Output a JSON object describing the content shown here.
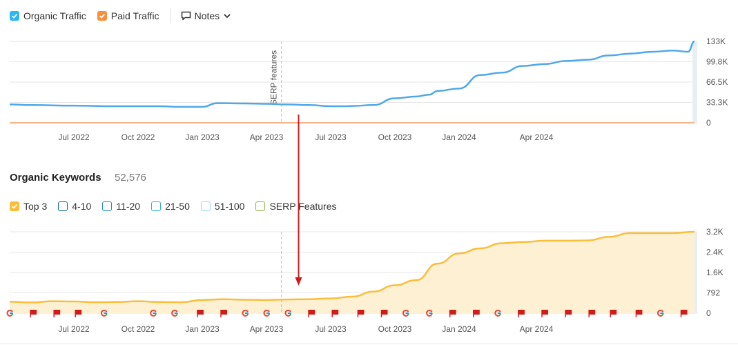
{
  "top_legend": {
    "organic": {
      "label": "Organic Traffic",
      "color": "#2bb7f4",
      "checked": true
    },
    "paid": {
      "label": "Paid Traffic",
      "color": "#f98e3b",
      "checked": true
    },
    "notes_label": "Notes"
  },
  "keywords": {
    "title": "Organic Keywords",
    "count": "52,576",
    "legend": [
      {
        "label": "Top 3",
        "color": "#fbbd35",
        "checked": true
      },
      {
        "label": "4-10",
        "color": "#0e6b8c",
        "checked": false
      },
      {
        "label": "11-20",
        "color": "#1e8fc4",
        "checked": false
      },
      {
        "label": "21-50",
        "color": "#2cb3c9",
        "checked": false
      },
      {
        "label": "51-100",
        "color": "#9fd9e6",
        "checked": false
      },
      {
        "label": "SERP Features",
        "color": "#8cb23a",
        "checked": false
      }
    ]
  },
  "colors": {
    "organic_line": "#4ea8ea",
    "paid_line": "#f7b28a",
    "top3_line": "#f9be3b",
    "top3_fill": "#fdf0d3",
    "arrow": "#cc1b1b",
    "grid": "#e6e6e6"
  },
  "chart_data": [
    {
      "type": "line",
      "x_tick_labels": [
        "Jul 2022",
        "Oct 2022",
        "Jan 2023",
        "Apr 2023",
        "Jul 2023",
        "Oct 2023",
        "Jan 2024",
        "Apr 2024"
      ],
      "y_tick_labels": [
        "133K",
        "99.8K",
        "66.5K",
        "33.3K",
        "0"
      ],
      "ylim": [
        0,
        133000
      ],
      "annotations": [
        {
          "label": "SERP features",
          "x_month": 12.7
        }
      ],
      "series": [
        {
          "name": "Organic Traffic",
          "x_month": [
            0,
            1,
            3,
            5,
            7,
            8,
            9,
            9.7,
            10,
            11,
            12,
            13,
            14,
            15,
            15.6,
            16,
            17,
            18,
            19,
            19.6,
            20,
            21,
            22,
            23,
            24,
            25,
            26,
            27,
            28,
            29,
            30,
            31,
            31.7,
            32
          ],
          "values": [
            30000,
            29000,
            28000,
            27000,
            27000,
            26000,
            26000,
            32000,
            32000,
            31500,
            31000,
            30000,
            29000,
            27000,
            27000,
            27500,
            29000,
            40000,
            43000,
            46000,
            52000,
            56000,
            78000,
            82000,
            93000,
            96000,
            101000,
            103000,
            110000,
            113000,
            116000,
            118000,
            116000,
            133000
          ]
        },
        {
          "name": "Paid Traffic",
          "x_month": [
            0,
            32
          ],
          "values": [
            0,
            0
          ]
        }
      ]
    },
    {
      "type": "area",
      "x_tick_labels": [
        "Jul 2022",
        "Oct 2022",
        "Jan 2023",
        "Apr 2023",
        "Jul 2023",
        "Oct 2023",
        "Jan 2024",
        "Apr 2024"
      ],
      "y_tick_labels": [
        "3.2K",
        "2.4K",
        "1.6K",
        "792",
        "0"
      ],
      "ylim": [
        0,
        3200
      ],
      "series": [
        {
          "name": "Top 3",
          "x_month": [
            0,
            1,
            2,
            3,
            4,
            5,
            6,
            7,
            8,
            9,
            10,
            11,
            12,
            13,
            14,
            15,
            16,
            17,
            18,
            19,
            20,
            21,
            22,
            23,
            24,
            25,
            26,
            27,
            28,
            29,
            30,
            31,
            32
          ],
          "values": [
            450,
            420,
            470,
            460,
            430,
            440,
            470,
            440,
            430,
            520,
            550,
            530,
            520,
            540,
            550,
            580,
            650,
            850,
            1100,
            1300,
            1950,
            2350,
            2550,
            2750,
            2800,
            2850,
            2850,
            2860,
            3000,
            3150,
            3150,
            3150,
            3200
          ]
        }
      ]
    }
  ],
  "timeline_markers": [
    {
      "x_month": 0.0,
      "kind": "google"
    },
    {
      "x_month": 1.1,
      "kind": "flag"
    },
    {
      "x_month": 2.2,
      "kind": "flag"
    },
    {
      "x_month": 3.2,
      "kind": "flag"
    },
    {
      "x_month": 4.4,
      "kind": "google"
    },
    {
      "x_month": 6.7,
      "kind": "google"
    },
    {
      "x_month": 7.7,
      "kind": "google"
    },
    {
      "x_month": 8.9,
      "kind": "flag"
    },
    {
      "x_month": 10.0,
      "kind": "flag"
    },
    {
      "x_month": 11.0,
      "kind": "google"
    },
    {
      "x_month": 12.0,
      "kind": "google"
    },
    {
      "x_month": 13.0,
      "kind": "google"
    },
    {
      "x_month": 14.1,
      "kind": "flag"
    },
    {
      "x_month": 15.2,
      "kind": "flag"
    },
    {
      "x_month": 16.4,
      "kind": "flag"
    },
    {
      "x_month": 17.5,
      "kind": "flag"
    },
    {
      "x_month": 18.5,
      "kind": "google"
    },
    {
      "x_month": 19.6,
      "kind": "google"
    },
    {
      "x_month": 20.7,
      "kind": "flag"
    },
    {
      "x_month": 21.8,
      "kind": "flag"
    },
    {
      "x_month": 22.8,
      "kind": "google"
    },
    {
      "x_month": 23.9,
      "kind": "flag"
    },
    {
      "x_month": 25.0,
      "kind": "flag"
    },
    {
      "x_month": 26.1,
      "kind": "flag"
    },
    {
      "x_month": 27.2,
      "kind": "flag"
    },
    {
      "x_month": 28.2,
      "kind": "flag"
    },
    {
      "x_month": 29.4,
      "kind": "flag"
    },
    {
      "x_month": 30.4,
      "kind": "google"
    },
    {
      "x_month": 31.5,
      "kind": "flag"
    }
  ],
  "arrow_annotation": {
    "x_month": 13.5
  }
}
